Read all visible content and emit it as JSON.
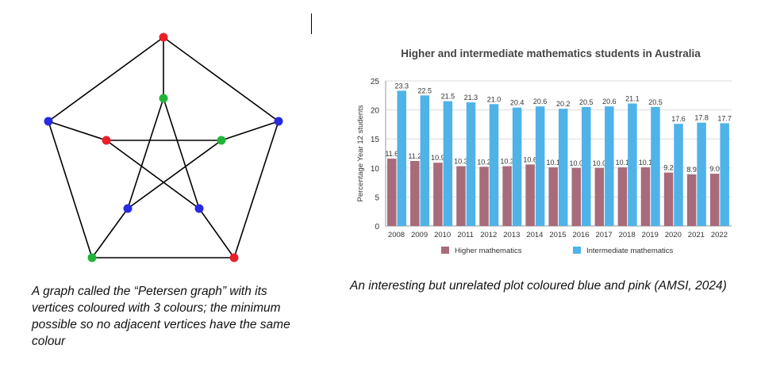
{
  "left_caption": "A graph called the “Petersen graph” with its vertices coloured with 3 colours; the minimum possible so no adjacent vertices have the same colour",
  "right_caption": "An interesting but unrelated plot coloured blue and pink (AMSI, 2024)",
  "graph": {
    "colors": {
      "red": "#e8202a",
      "green": "#22b43a",
      "blue": "#2a2ae0"
    },
    "vertices": [
      {
        "id": "o0",
        "ring": "outer",
        "color": "red"
      },
      {
        "id": "o1",
        "ring": "outer",
        "color": "blue"
      },
      {
        "id": "o2",
        "ring": "outer",
        "color": "red"
      },
      {
        "id": "o3",
        "ring": "outer",
        "color": "green"
      },
      {
        "id": "o4",
        "ring": "outer",
        "color": "blue"
      },
      {
        "id": "i0",
        "ring": "inner",
        "color": "green"
      },
      {
        "id": "i1",
        "ring": "inner",
        "color": "green"
      },
      {
        "id": "i2",
        "ring": "inner",
        "color": "blue"
      },
      {
        "id": "i3",
        "ring": "inner",
        "color": "blue"
      },
      {
        "id": "i4",
        "ring": "inner",
        "color": "red"
      }
    ],
    "edges": [
      [
        "o0",
        "o1"
      ],
      [
        "o1",
        "o2"
      ],
      [
        "o2",
        "o3"
      ],
      [
        "o3",
        "o4"
      ],
      [
        "o4",
        "o0"
      ],
      [
        "o0",
        "i0"
      ],
      [
        "o1",
        "i1"
      ],
      [
        "o2",
        "i2"
      ],
      [
        "o3",
        "i3"
      ],
      [
        "o4",
        "i4"
      ],
      [
        "i0",
        "i2"
      ],
      [
        "i2",
        "i4"
      ],
      [
        "i4",
        "i1"
      ],
      [
        "i1",
        "i3"
      ],
      [
        "i3",
        "i0"
      ]
    ]
  },
  "chart_data": {
    "type": "bar",
    "title": "Higher and intermediate mathematics students in Australia",
    "xlabel": "",
    "ylabel": "Percentage Year 12 students",
    "ylim": [
      0,
      25
    ],
    "yticks": [
      0,
      5,
      10,
      15,
      20,
      25
    ],
    "grid": true,
    "legend": "bottom",
    "categories": [
      "2008",
      "2009",
      "2010",
      "2011",
      "2012",
      "2013",
      "2014",
      "2015",
      "2016",
      "2017",
      "2018",
      "2019",
      "2020",
      "2021",
      "2022"
    ],
    "series": [
      {
        "name": "Higher mathematics",
        "color": "#a86b7a",
        "values": [
          11.6,
          11.2,
          10.9,
          10.3,
          10.2,
          10.3,
          10.6,
          10.1,
          10.0,
          10.0,
          10.1,
          10.1,
          9.2,
          8.9,
          9.0
        ],
        "labels": [
          "11.6",
          "11.2",
          "10.9",
          "10.3",
          "10.2",
          "10.3",
          "10.6",
          "10.1",
          "10.0",
          "10.0",
          "10.1",
          "10.1",
          "9.2",
          "8.9",
          "9.0"
        ]
      },
      {
        "name": "Intermediate mathematics",
        "color": "#4fb3e8",
        "values": [
          23.3,
          22.5,
          21.5,
          21.3,
          21.0,
          20.4,
          20.6,
          20.2,
          20.5,
          20.6,
          21.1,
          20.5,
          17.6,
          17.8,
          17.7
        ],
        "labels": [
          "23.3",
          "22.5",
          "21.5",
          "21.3",
          "21.0",
          "20.4",
          "20.6",
          "20.2",
          "20.5",
          "20.6",
          "21.1",
          "20.5",
          "17.6",
          "17.8",
          "17.7"
        ]
      }
    ]
  }
}
